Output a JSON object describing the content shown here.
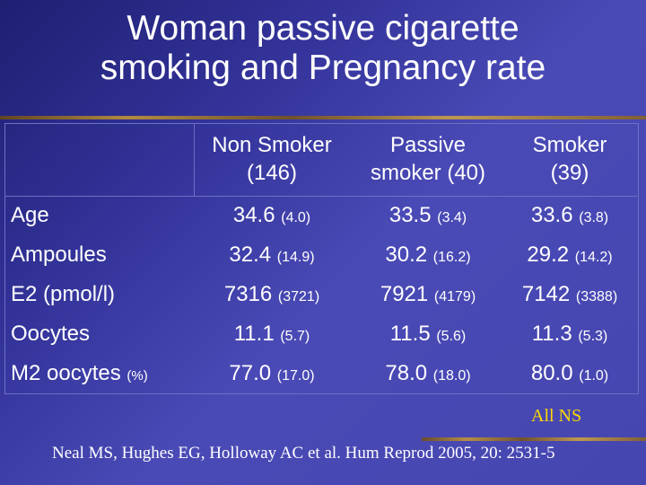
{
  "slide": {
    "title_line1": "Woman passive cigarette",
    "title_line2": "smoking and Pregnancy rate"
  },
  "table": {
    "columns": [
      "Non Smoker\n(146)",
      "Passive\nsmoker (40)",
      "Smoker\n(39)"
    ],
    "rows": [
      {
        "label": "Age",
        "label_sub": "",
        "cells": [
          {
            "v": "34.6",
            "sd": "(4.0)"
          },
          {
            "v": "33.5",
            "sd": "(3.4)"
          },
          {
            "v": "33.6",
            "sd": "(3.8)"
          }
        ]
      },
      {
        "label": "Ampoules",
        "label_sub": "",
        "cells": [
          {
            "v": "32.4",
            "sd": "(14.9)"
          },
          {
            "v": "30.2",
            "sd": "(16.2)"
          },
          {
            "v": "29.2",
            "sd": "(14.2)"
          }
        ]
      },
      {
        "label": "E2 (pmol/l)",
        "label_sub": "",
        "cells": [
          {
            "v": "7316",
            "sd": "(3721)"
          },
          {
            "v": "7921",
            "sd": "(4179)"
          },
          {
            "v": "7142",
            "sd": "(3388)"
          }
        ]
      },
      {
        "label": "Oocytes",
        "label_sub": "",
        "cells": [
          {
            "v": "11.1",
            "sd": "(5.7)"
          },
          {
            "v": "11.5",
            "sd": "(5.6)"
          },
          {
            "v": "11.3",
            "sd": "(5.3)"
          }
        ]
      },
      {
        "label": "M2 oocytes",
        "label_sub": "(%)",
        "cells": [
          {
            "v": "77.0",
            "sd": "(17.0)"
          },
          {
            "v": "78.0",
            "sd": "(18.0)"
          },
          {
            "v": "80.0",
            "sd": "(1.0)"
          }
        ]
      }
    ]
  },
  "note": "All NS",
  "citation": "Neal MS, Hughes EG, Holloway AC et al. Hum Reprod 2005, 20: 2531-5",
  "colors": {
    "background": "#3a3aa6",
    "text": "#ffffff",
    "note": "#ffd800",
    "accent_rule": "#c99a33"
  }
}
